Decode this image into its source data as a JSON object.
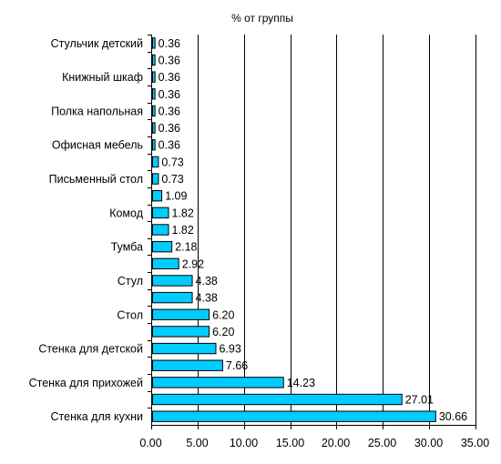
{
  "chart_data": {
    "type": "bar",
    "orientation": "horizontal",
    "title": "% от группы",
    "categories": [
      "Стульчик детский",
      "",
      "Книжный шкаф",
      "",
      "Полка напольная",
      "",
      "Офисная мебель",
      "",
      "Письменный стол",
      "",
      "Комод",
      "",
      "Тумба",
      "",
      "Стул",
      "",
      "Стол",
      "",
      "Стенка для детской",
      "",
      "Стенка для прихожей",
      "",
      "Стенка для кухни"
    ],
    "values": [
      0.36,
      0.36,
      0.36,
      0.36,
      0.36,
      0.36,
      0.36,
      0.73,
      0.73,
      1.09,
      1.82,
      1.82,
      2.18,
      2.92,
      4.38,
      4.38,
      6.2,
      6.2,
      6.93,
      7.66,
      14.23,
      27.01,
      30.66
    ],
    "value_labels": [
      "0.36",
      "0.36",
      "0.36",
      "0.36",
      "0.36",
      "0.36",
      "0.36",
      "0.73",
      "0.73",
      "1.09",
      "1.82",
      "1.82",
      "2.18",
      "2.92",
      "4.38",
      "4.38",
      "6.20",
      "6.20",
      "6.93",
      "7.66",
      "14.23",
      "27.01",
      "30.66"
    ],
    "xlim": [
      0,
      35
    ],
    "xticks": [
      "0.00",
      "5.00",
      "10.00",
      "15.00",
      "20.00",
      "25.00",
      "30.00",
      "35.00"
    ],
    "xlabel": "",
    "ylabel": "",
    "grid": "vertical",
    "legend": "none",
    "colors": {
      "bar": "#00ccff",
      "bar_edge": "#000000",
      "grid": "#000000"
    }
  }
}
